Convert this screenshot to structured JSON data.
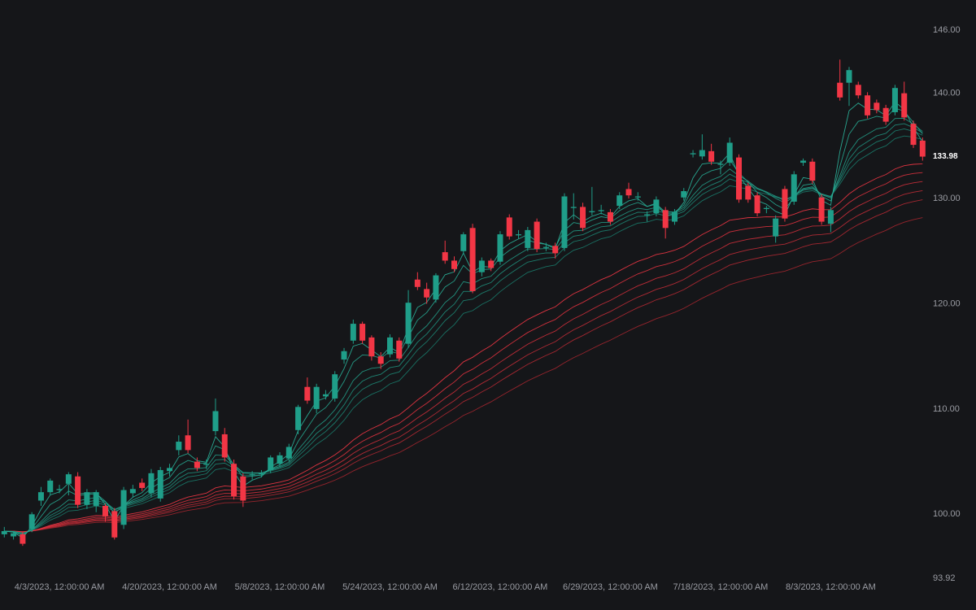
{
  "chart_data": {
    "type": "candlestick",
    "x": [
      "2023-03-24",
      "2023-03-27",
      "2023-03-28",
      "2023-03-29",
      "2023-03-30",
      "2023-03-31",
      "2023-04-03",
      "2023-04-04",
      "2023-04-05",
      "2023-04-06",
      "2023-04-10",
      "2023-04-11",
      "2023-04-12",
      "2023-04-13",
      "2023-04-14",
      "2023-04-17",
      "2023-04-18",
      "2023-04-19",
      "2023-04-20",
      "2023-04-21",
      "2023-04-24",
      "2023-04-25",
      "2023-04-26",
      "2023-04-27",
      "2023-04-28",
      "2023-05-01",
      "2023-05-02",
      "2023-05-03",
      "2023-05-04",
      "2023-05-05",
      "2023-05-08",
      "2023-05-09",
      "2023-05-10",
      "2023-05-11",
      "2023-05-12",
      "2023-05-15",
      "2023-05-16",
      "2023-05-17",
      "2023-05-18",
      "2023-05-19",
      "2023-05-22",
      "2023-05-23",
      "2023-05-24",
      "2023-05-25",
      "2023-05-26",
      "2023-05-30",
      "2023-05-31",
      "2023-06-01",
      "2023-06-02",
      "2023-06-05",
      "2023-06-06",
      "2023-06-07",
      "2023-06-08",
      "2023-06-09",
      "2023-06-12",
      "2023-06-13",
      "2023-06-14",
      "2023-06-15",
      "2023-06-16",
      "2023-06-20",
      "2023-06-21",
      "2023-06-22",
      "2023-06-23",
      "2023-06-26",
      "2023-06-27",
      "2023-06-28",
      "2023-06-29",
      "2023-06-30",
      "2023-07-03",
      "2023-07-05",
      "2023-07-06",
      "2023-07-07",
      "2023-07-10",
      "2023-07-11",
      "2023-07-12",
      "2023-07-13",
      "2023-07-14",
      "2023-07-17",
      "2023-07-18",
      "2023-07-19",
      "2023-07-20",
      "2023-07-21",
      "2023-07-24",
      "2023-07-25",
      "2023-07-26",
      "2023-07-27",
      "2023-07-28",
      "2023-07-31",
      "2023-08-01",
      "2023-08-02",
      "2023-08-03",
      "2023-08-04",
      "2023-08-07",
      "2023-08-08",
      "2023-08-09",
      "2023-08-10",
      "2023-08-11",
      "2023-08-14",
      "2023-08-15",
      "2023-08-16",
      "2023-08-17"
    ],
    "open": [
      98.1,
      97.9,
      98.1,
      98.6,
      101.3,
      102.1,
      102.3,
      102.9,
      103.6,
      100.9,
      100.8,
      100.8,
      100.3,
      99.0,
      102.0,
      103.0,
      102.0,
      101.5,
      104.1,
      106.1,
      107.5,
      105.0,
      104.7,
      107.9,
      107.6,
      104.8,
      103.6,
      103.7,
      103.8,
      104.2,
      104.8,
      105.3,
      108.0,
      112.1,
      110.0,
      111.2,
      111.0,
      114.7,
      116.5,
      118.1,
      116.8,
      115.0,
      115.2,
      116.5,
      116.2,
      122.3,
      121.4,
      120.4,
      124.9,
      124.1,
      125.0,
      127.2,
      123.0,
      124.1,
      124.0,
      128.2,
      126.5,
      125.3,
      127.8,
      125.3,
      125.5,
      125.3,
      129.1,
      129.2,
      128.7,
      128.8,
      128.7,
      129.3,
      130.9,
      130.1,
      128.4,
      128.6,
      128.9,
      127.8,
      130.1,
      134.2,
      134.0,
      134.5,
      133.2,
      133.4,
      133.9,
      131.2,
      130.3,
      129.0,
      126.4,
      130.9,
      129.7,
      133.4,
      133.5,
      130.1,
      127.6,
      141.0,
      141.0,
      140.8,
      139.8,
      139.1,
      138.6,
      138.2,
      140.0,
      137.1,
      135.5
    ],
    "high": [
      98.8,
      98.4,
      98.3,
      100.2,
      102.6,
      103.4,
      102.8,
      104.0,
      104.0,
      102.4,
      102.3,
      101.0,
      100.6,
      102.6,
      102.8,
      103.4,
      104.3,
      104.5,
      104.8,
      107.5,
      109.0,
      105.4,
      105.2,
      111.0,
      108.2,
      105.2,
      103.9,
      104.1,
      104.2,
      105.6,
      105.9,
      106.7,
      110.4,
      113.0,
      112.4,
      111.8,
      113.6,
      115.8,
      118.5,
      118.3,
      117.0,
      115.4,
      117.1,
      116.8,
      121.3,
      123.0,
      122.0,
      122.9,
      126.0,
      124.5,
      126.8,
      127.6,
      124.4,
      124.3,
      126.9,
      128.5,
      127.0,
      127.3,
      128.1,
      125.8,
      125.8,
      130.5,
      130.5,
      129.6,
      131.1,
      129.4,
      129.0,
      130.6,
      131.5,
      130.6,
      128.8,
      130.2,
      129.2,
      129.0,
      131.0,
      134.6,
      136.1,
      135.2,
      133.6,
      135.8,
      134.2,
      131.5,
      130.6,
      129.3,
      128.4,
      131.2,
      132.6,
      133.8,
      133.8,
      130.4,
      129.2,
      143.2,
      142.5,
      141.1,
      140.1,
      139.4,
      138.9,
      140.8,
      141.1,
      137.4,
      135.8
    ],
    "low": [
      97.8,
      97.6,
      97.0,
      98.3,
      100.8,
      101.8,
      102.0,
      101.8,
      100.6,
      100.5,
      100.2,
      99.3,
      97.6,
      98.6,
      101.6,
      102.2,
      101.6,
      101.2,
      103.6,
      105.6,
      105.8,
      104.1,
      104.3,
      107.5,
      105.0,
      101.4,
      100.7,
      103.3,
      103.5,
      103.9,
      104.5,
      105.0,
      107.6,
      110.5,
      109.6,
      110.9,
      110.7,
      114.3,
      116.2,
      116.2,
      114.6,
      113.8,
      114.9,
      114.5,
      115.8,
      121.3,
      120.0,
      120.1,
      123.8,
      123.0,
      124.7,
      121.0,
      122.6,
      123.1,
      123.7,
      126.1,
      126.2,
      125.0,
      124.9,
      125.0,
      124.3,
      125.0,
      128.0,
      126.9,
      128.4,
      128.5,
      127.5,
      129.0,
      130.0,
      129.8,
      127.8,
      128.3,
      126.2,
      127.5,
      129.8,
      133.9,
      133.7,
      133.2,
      132.3,
      133.1,
      129.6,
      129.6,
      128.3,
      128.6,
      125.8,
      127.8,
      129.4,
      133.1,
      131.4,
      127.5,
      126.8,
      139.3,
      138.8,
      139.5,
      137.6,
      138.1,
      137.0,
      137.9,
      137.4,
      134.8,
      133.6
    ],
    "close": [
      98.4,
      98.2,
      97.2,
      100.0,
      102.1,
      103.2,
      102.4,
      103.8,
      100.9,
      102.1,
      102.1,
      99.8,
      97.8,
      102.3,
      102.4,
      102.5,
      103.9,
      104.2,
      104.4,
      106.9,
      106.1,
      104.4,
      104.8,
      109.8,
      105.4,
      101.7,
      101.3,
      103.8,
      103.9,
      105.4,
      105.6,
      106.4,
      110.2,
      110.8,
      112.1,
      111.4,
      113.3,
      115.5,
      118.1,
      116.5,
      115.0,
      114.3,
      116.8,
      114.8,
      120.1,
      121.6,
      120.6,
      122.7,
      124.1,
      123.3,
      126.6,
      121.2,
      124.1,
      123.4,
      126.6,
      126.4,
      126.6,
      127.0,
      125.2,
      125.4,
      124.8,
      130.2,
      129.2,
      127.2,
      128.8,
      128.9,
      127.8,
      130.3,
      130.3,
      130.2,
      128.5,
      129.9,
      127.2,
      128.7,
      130.7,
      134.3,
      134.6,
      133.5,
      133.3,
      135.3,
      129.9,
      129.9,
      128.6,
      129.1,
      128.1,
      128.1,
      132.3,
      133.6,
      131.7,
      127.8,
      128.9,
      139.6,
      142.2,
      139.8,
      137.9,
      138.4,
      137.3,
      140.5,
      137.7,
      135.1,
      133.98
    ],
    "up_color": "#1f9e89",
    "down_color": "#f23645",
    "moving_averages": [
      {
        "period": 3,
        "color": "#2bb59c"
      },
      {
        "period": 5,
        "color": "#27a891"
      },
      {
        "period": 8,
        "color": "#239c87"
      },
      {
        "period": 10,
        "color": "#20907d"
      },
      {
        "period": 12,
        "color": "#1d8573"
      },
      {
        "period": 15,
        "color": "#1a7a6a"
      },
      {
        "period": 30,
        "color": "#f23645"
      },
      {
        "period": 35,
        "color": "#e0323f"
      },
      {
        "period": 40,
        "color": "#cf2f3b"
      },
      {
        "period": 45,
        "color": "#c02c37"
      },
      {
        "period": 50,
        "color": "#b12933"
      },
      {
        "period": 60,
        "color": "#a3262f"
      }
    ],
    "ylim": [
      93.92,
      148.86
    ],
    "yticks": [
      93.92,
      {
        "value": 100,
        "label": "100.00"
      },
      {
        "value": 110,
        "label": "110.00"
      },
      {
        "value": 120,
        "label": "120.00"
      },
      {
        "value": 130,
        "label": "130.00"
      },
      {
        "value": 140,
        "label": "140.00"
      },
      {
        "value": 146,
        "label": "146.00"
      }
    ],
    "xticks": [
      {
        "value": "2023-04-03",
        "label": "4/3/2023, 12:00:00 AM"
      },
      {
        "value": "2023-04-20",
        "label": "4/20/2023, 12:00:00 AM"
      },
      {
        "value": "2023-05-08",
        "label": "5/8/2023, 12:00:00 AM"
      },
      {
        "value": "2023-05-24",
        "label": "5/24/2023, 12:00:00 AM"
      },
      {
        "value": "2023-06-12",
        "label": "6/12/2023, 12:00:00 AM"
      },
      {
        "value": "2023-06-29",
        "label": "6/29/2023, 12:00:00 AM"
      },
      {
        "value": "2023-07-18",
        "label": "7/18/2023, 12:00:00 AM"
      },
      {
        "value": "2023-08-03",
        "label": "8/3/2023, 12:00:00 AM"
      }
    ]
  }
}
